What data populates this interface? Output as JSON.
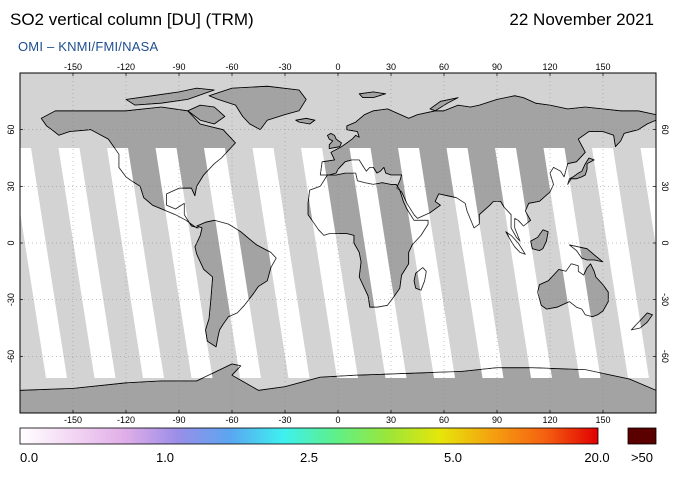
{
  "header": {
    "title": "SO2 vertical column [DU] (TRM)",
    "date": "22 November 2021",
    "credit": "OMI  –  KNMI/FMI/NASA"
  },
  "map": {
    "projection": "equirectangular",
    "lon_range": [
      -180,
      180
    ],
    "lat_range": [
      -90,
      90
    ],
    "lon_ticks": [
      -150,
      -120,
      -90,
      -60,
      -30,
      0,
      30,
      60,
      90,
      120,
      150
    ],
    "lat_ticks": [
      60,
      30,
      0,
      -30,
      -60
    ],
    "lon_tick_labels": [
      "-150",
      "-120",
      "-90",
      "-60",
      "-30",
      "0",
      "30",
      "60",
      "90",
      "120",
      "150"
    ],
    "lat_tick_labels": [
      "60",
      "30",
      "0",
      "-30",
      "-60"
    ],
    "colors": {
      "no_data_ocean": "#d3d3d3",
      "no_data_land": "#a3a3a3",
      "low_value_ocean": "#ffffff",
      "low_value_land": "#ffffff",
      "coastline": "#000000",
      "grid": "#888888"
    }
  },
  "colorbar": {
    "labels": [
      "0.0",
      "1.0",
      "2.5",
      "5.0",
      "20.0",
      ">50"
    ],
    "stops": [
      "#ffffff",
      "#f3d6f3",
      "#e0aee8",
      "#9a8ee8",
      "#5aa6f0",
      "#3ef0f0",
      "#5ef08a",
      "#9ae63a",
      "#e6e60a",
      "#f5a010",
      "#f56010",
      "#e00000"
    ],
    "overflow_color": "#5a0000"
  }
}
